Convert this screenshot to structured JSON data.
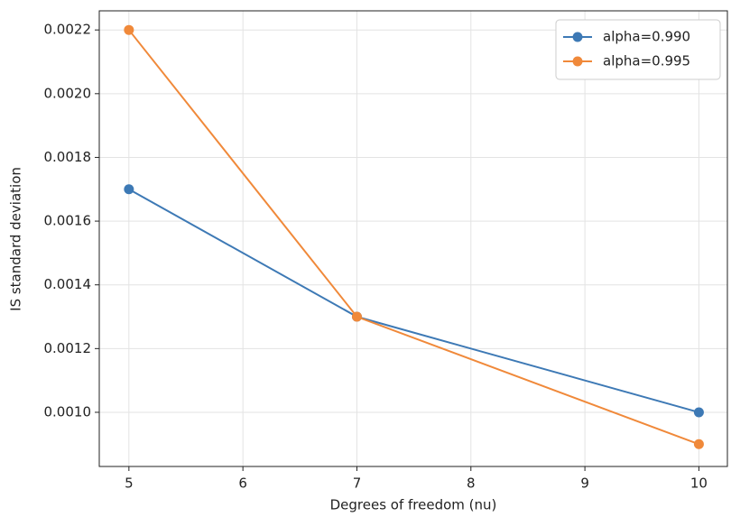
{
  "chart_data": {
    "type": "line",
    "x_label": "Degrees of freedom (nu)",
    "y_label": "IS standard deviation",
    "x": [
      5,
      7,
      10
    ],
    "series": [
      {
        "name": "alpha=0.990",
        "color": "#3d79b5",
        "values": [
          0.0017,
          0.0013,
          0.001
        ]
      },
      {
        "name": "alpha=0.995",
        "color": "#f0893a",
        "values": [
          0.0022,
          0.0013,
          0.0009
        ]
      }
    ],
    "xlim": [
      4.74,
      10.25
    ],
    "ylim": [
      0.00083,
      0.00226
    ],
    "xticks": [
      5,
      6,
      7,
      8,
      9,
      10
    ],
    "yticks": [
      {
        "value": 0.001,
        "label": "0.0010"
      },
      0.0012,
      0.0014,
      0.0016,
      0.0018,
      {
        "value": 0.002,
        "label": "0.0020"
      },
      0.0022
    ],
    "grid": true,
    "legend": "upper right"
  }
}
